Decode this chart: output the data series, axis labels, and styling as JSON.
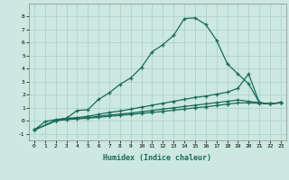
{
  "xlabel": "Humidex (Indice chaleur)",
  "ylabel": "",
  "background_color": "#cce8e0",
  "grid_color": "#a8cfc8",
  "line_color": "#1a6b5a",
  "xlim": [
    -0.5,
    23.5
  ],
  "ylim": [
    -1.5,
    9.0
  ],
  "yticks": [
    -1,
    0,
    1,
    2,
    3,
    4,
    5,
    6,
    7,
    8
  ],
  "xticks": [
    0,
    1,
    2,
    3,
    4,
    5,
    6,
    7,
    8,
    9,
    10,
    11,
    12,
    13,
    14,
    15,
    16,
    17,
    18,
    19,
    20,
    21,
    22,
    23
  ],
  "series": [
    {
      "x": [
        0,
        1,
        2,
        3,
        4,
        5,
        6,
        7,
        8,
        9,
        10,
        11,
        12,
        13,
        14,
        15,
        16,
        17,
        18,
        19,
        20,
        21,
        22,
        23
      ],
      "y": [
        -0.7,
        -0.05,
        0.1,
        0.2,
        0.8,
        0.85,
        1.65,
        2.15,
        2.8,
        3.3,
        4.1,
        5.3,
        5.85,
        6.55,
        7.85,
        7.9,
        7.4,
        6.2,
        4.4,
        3.6,
        2.85,
        1.4,
        1.3,
        1.4
      ]
    },
    {
      "x": [
        0,
        2,
        3,
        4,
        5,
        6,
        7,
        8,
        9,
        10,
        11,
        12,
        13,
        14,
        15,
        16,
        17,
        18,
        19,
        20,
        21,
        22,
        23
      ],
      "y": [
        -0.7,
        0.05,
        0.2,
        0.25,
        0.35,
        0.5,
        0.65,
        0.75,
        0.9,
        1.05,
        1.2,
        1.35,
        1.5,
        1.65,
        1.8,
        1.9,
        2.05,
        2.2,
        2.5,
        3.6,
        1.4,
        1.3,
        1.4
      ]
    },
    {
      "x": [
        0,
        2,
        3,
        4,
        5,
        6,
        7,
        8,
        9,
        10,
        11,
        12,
        13,
        14,
        15,
        16,
        17,
        18,
        19,
        20,
        21,
        22,
        23
      ],
      "y": [
        -0.7,
        0.0,
        0.15,
        0.2,
        0.25,
        0.35,
        0.45,
        0.52,
        0.6,
        0.7,
        0.8,
        0.9,
        1.0,
        1.1,
        1.2,
        1.3,
        1.4,
        1.5,
        1.6,
        1.5,
        1.4,
        1.3,
        1.4
      ]
    },
    {
      "x": [
        0,
        2,
        3,
        4,
        5,
        6,
        7,
        8,
        9,
        10,
        11,
        12,
        13,
        14,
        15,
        16,
        17,
        18,
        19,
        20,
        21,
        22,
        23
      ],
      "y": [
        -0.7,
        0.0,
        0.1,
        0.15,
        0.2,
        0.27,
        0.35,
        0.42,
        0.5,
        0.57,
        0.65,
        0.72,
        0.82,
        0.9,
        1.0,
        1.08,
        1.18,
        1.28,
        1.38,
        1.38,
        1.35,
        1.3,
        1.4
      ]
    }
  ]
}
